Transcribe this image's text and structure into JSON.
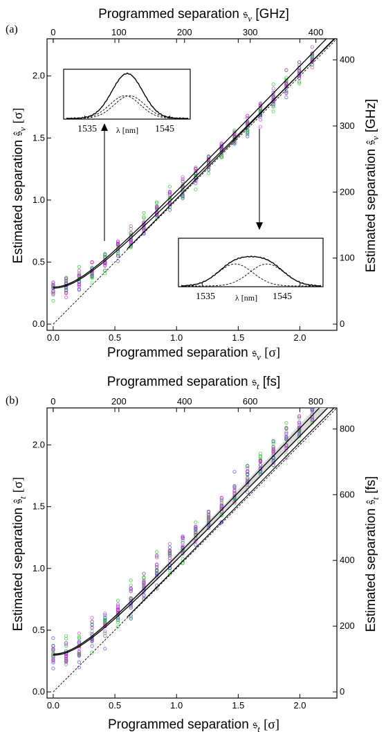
{
  "chart_data": [
    {
      "panel_label": "(a)",
      "type": "scatter",
      "xlabel": "Programmed separation 𝔰",
      "xlabel_sub": "ν",
      "xlabel_unit": "[σ]",
      "x2label": "Programmed separation 𝔰",
      "x2label_sub": "ν",
      "x2label_unit": "[GHz]",
      "ylabel": "Estimated separation 𝔰̂",
      "ylabel_sub": "ν",
      "ylabel_unit": "[σ]",
      "y2label": "Estimated separation 𝔰̂",
      "y2label_sub": "ν",
      "y2label_unit": "[GHz]",
      "xlim": [
        -0.05,
        2.3
      ],
      "ylim": [
        -0.05,
        2.3
      ],
      "x2lim": [
        -9.4,
        432
      ],
      "y2lim": [
        -9.4,
        432
      ],
      "xticks": [
        "0.0",
        "0.5",
        "1.0",
        "1.5",
        "2.0"
      ],
      "yticks": [
        "0.0",
        "0.5",
        "1.0",
        "1.5",
        "2.0"
      ],
      "x2ticks": [
        "0",
        "100",
        "200",
        "300",
        "400"
      ],
      "y2ticks": [
        "0",
        "100",
        "200",
        "300",
        "400"
      ],
      "x_positions": [
        0.0,
        0.105,
        0.21,
        0.315,
        0.42,
        0.525,
        0.63,
        0.735,
        0.84,
        0.945,
        1.05,
        1.155,
        1.26,
        1.365,
        1.47,
        1.575,
        1.68,
        1.785,
        1.89,
        1.995,
        2.1
      ],
      "y_means": [
        0.29,
        0.31,
        0.36,
        0.43,
        0.51,
        0.6,
        0.68,
        0.79,
        0.9,
        1.0,
        1.1,
        1.2,
        1.3,
        1.4,
        1.51,
        1.61,
        1.72,
        1.82,
        1.93,
        2.03,
        2.14
      ],
      "y_spread": 0.05,
      "series_colors": [
        "#3d3dd8",
        "#22c422",
        "#cc33cc"
      ],
      "grid": false,
      "insets": [
        {
          "position": "upper-left",
          "xlabel": "λ [nm]",
          "xticks": [
            "1535",
            "1545"
          ],
          "separation": 0.15,
          "arrow_from_x": 0.42
        },
        {
          "position": "lower-right",
          "xlabel": "λ [nm]",
          "xticks": [
            "1535",
            "1545"
          ],
          "separation": 0.9,
          "arrow_from_x": 1.575
        }
      ]
    },
    {
      "panel_label": "(b)",
      "type": "scatter",
      "xlabel": "Programmed separation 𝔰",
      "xlabel_sub": "t",
      "xlabel_unit": "[σ]",
      "x2label": "Programmed separation 𝔰",
      "x2label_sub": "t",
      "x2label_unit": "[fs]",
      "ylabel": "Estimated separation 𝔰̂",
      "ylabel_sub": "t",
      "ylabel_unit": "[σ]",
      "y2label": "Estimated separation 𝔰̂",
      "y2label_sub": "t",
      "y2label_unit": "[fs]",
      "xlim": [
        -0.05,
        2.3
      ],
      "ylim": [
        -0.05,
        2.3
      ],
      "x2lim": [
        -18.8,
        864
      ],
      "y2lim": [
        -18.8,
        864
      ],
      "xticks": [
        "0.0",
        "0.5",
        "1.0",
        "1.5",
        "2.0"
      ],
      "yticks": [
        "0.0",
        "0.5",
        "1.0",
        "1.5",
        "2.0"
      ],
      "x2ticks": [
        "0",
        "200",
        "400",
        "600",
        "800"
      ],
      "y2ticks": [
        "0",
        "200",
        "400",
        "600",
        "800"
      ],
      "x_positions": [
        0.0,
        0.105,
        0.21,
        0.315,
        0.42,
        0.525,
        0.63,
        0.735,
        0.84,
        0.945,
        1.05,
        1.155,
        1.26,
        1.365,
        1.47,
        1.575,
        1.68,
        1.785,
        1.89,
        1.995,
        2.1
      ],
      "y_means": [
        0.29,
        0.31,
        0.37,
        0.46,
        0.55,
        0.65,
        0.75,
        0.86,
        0.97,
        1.08,
        1.18,
        1.29,
        1.4,
        1.5,
        1.61,
        1.72,
        1.82,
        1.93,
        2.03,
        2.14,
        2.25
      ],
      "y_spread": 0.07,
      "series_colors": [
        "#3d3dd8",
        "#22c422",
        "#cc33cc"
      ],
      "grid": false
    }
  ]
}
